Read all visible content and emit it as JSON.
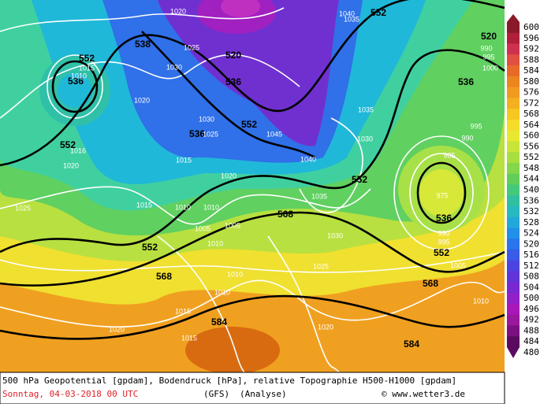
{
  "colorbar": {
    "labels": [
      600,
      596,
      592,
      588,
      584,
      580,
      576,
      572,
      568,
      564,
      560,
      556,
      552,
      548,
      544,
      540,
      536,
      532,
      528,
      524,
      520,
      516,
      512,
      508,
      504,
      500,
      496,
      492,
      488,
      484,
      480
    ],
    "colors": [
      "#8a1a2a",
      "#b0203a",
      "#d03050",
      "#e05040",
      "#e86a28",
      "#ec8420",
      "#f09a20",
      "#f4b020",
      "#f6c820",
      "#f4dc28",
      "#e8e830",
      "#c8e438",
      "#a8de40",
      "#84d64a",
      "#60ce58",
      "#44c87a",
      "#30c0a0",
      "#28b8c0",
      "#22a8d8",
      "#2090e8",
      "#2a74ec",
      "#3a5ae8",
      "#4c44e0",
      "#6034d8",
      "#7828d0",
      "#9220c8",
      "#a818b8",
      "#9a189c",
      "#7c1080",
      "#5a0a60"
    ]
  },
  "geopotential_labels": [
    "552",
    "520",
    "552",
    "536",
    "538",
    "520",
    "536",
    "552",
    "536",
    "552",
    "552",
    "568",
    "536",
    "552",
    "552",
    "568",
    "568",
    "584",
    "584",
    "536"
  ],
  "pressure_labels": [
    "1020",
    "1025",
    "1030",
    "1020",
    "1015",
    "1010",
    "1030",
    "1025",
    "1015",
    "1045",
    "1040",
    "1035",
    "1030",
    "1020",
    "1015",
    "1010",
    "1010",
    "1005",
    "1005",
    "1010",
    "1035",
    "1030",
    "1025",
    "1010",
    "1010",
    "1015",
    "1015",
    "1020",
    "1020",
    "1025",
    "1020",
    "1016",
    "995",
    "990",
    "985",
    "975",
    "990",
    "995",
    "1005",
    "1010",
    "990",
    "995",
    "1000",
    "1040",
    "1035"
  ],
  "caption": {
    "line1": "500 hPa Geopotential [gpdam], Bodendruck [hPa], relative Topographie H500-H1000 [gpdam]",
    "date": "Sonntag, 04-03-2018  00 UTC",
    "model": "(GFS)",
    "run": "(Analyse)",
    "credit": "© www.wetter3.de"
  }
}
